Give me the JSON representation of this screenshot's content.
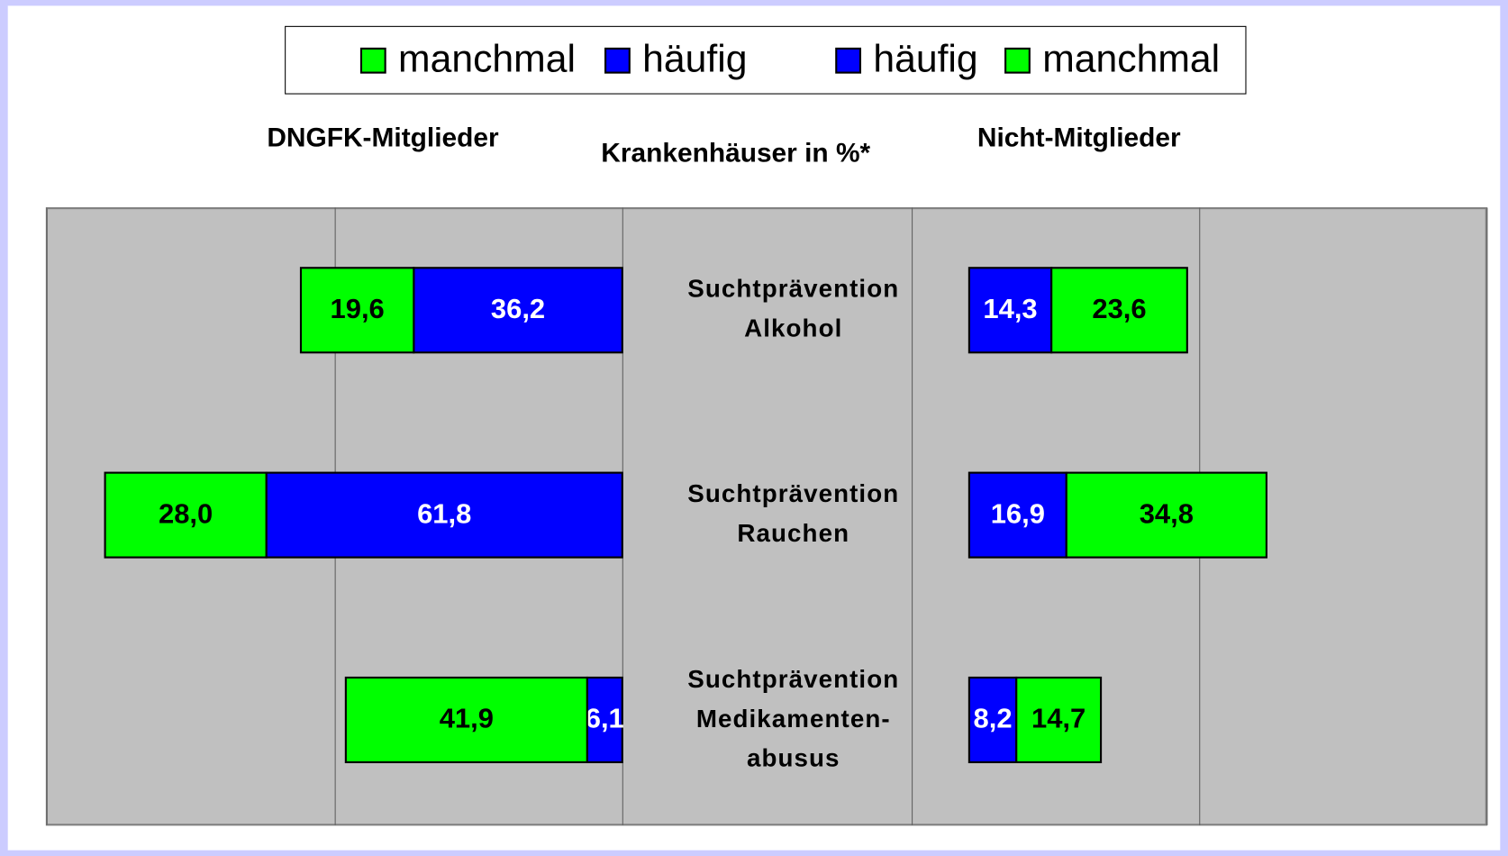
{
  "chart_data": {
    "type": "bar",
    "title": "Krankenhäuser in %*",
    "categories": [
      [
        "Suchtprävention",
        "Alkohol"
      ],
      [
        "Suchtprävention",
        "Rauchen"
      ],
      [
        "Suchtprävention",
        "Medikamenten-",
        "abusus"
      ]
    ],
    "grid": true,
    "stacked": true,
    "panels": [
      {
        "title": "DNGFK-Mitglieder",
        "reversed": true,
        "xlim": [
          0,
          100
        ],
        "xticks": [
          0,
          50,
          100
        ],
        "series": [
          {
            "name": "manchmal",
            "color": "#00ff00",
            "values": [
              19.6,
              28.0,
              41.9
            ],
            "value_labels": [
              "19,6",
              "28,0",
              "41,9"
            ]
          },
          {
            "name": "häufig",
            "color": "#0000ff",
            "values": [
              36.2,
              61.8,
              6.1
            ],
            "value_labels": [
              "36,2",
              "61,8",
              "6,1"
            ]
          }
        ]
      },
      {
        "title": "Nicht-Mitglieder",
        "reversed": false,
        "xlim": [
          -10,
          90
        ],
        "xticks": [
          -10,
          40,
          90
        ],
        "series": [
          {
            "name": "häufig",
            "color": "#0000ff",
            "values": [
              14.3,
              16.9,
              8.2
            ],
            "value_labels": [
              "14,3",
              "16,9",
              "8,2"
            ]
          },
          {
            "name": "manchmal",
            "color": "#00ff00",
            "values": [
              23.6,
              34.8,
              14.7
            ],
            "value_labels": [
              "23,6",
              "34,8",
              "14,7"
            ]
          }
        ]
      }
    ]
  }
}
